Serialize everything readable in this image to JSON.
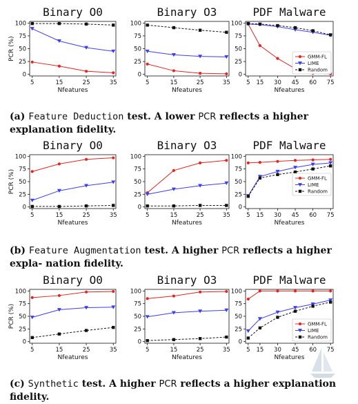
{
  "chart_data": [
    {
      "type": "line",
      "title": "Binary O0",
      "xlabel": "Nfeatures",
      "ylabel": "PCR (%)",
      "x": [
        5,
        15,
        25,
        35
      ],
      "ylim": [
        0,
        100
      ],
      "yticks": [
        0,
        25,
        50,
        75,
        100
      ],
      "series": [
        {
          "color": "#e8231e",
          "marker": "circle",
          "dashed": false,
          "values": [
            24,
            16,
            6,
            3
          ]
        },
        {
          "color": "#3b3ff0",
          "marker": "triangle",
          "dashed": false,
          "values": [
            89,
            65,
            52,
            45
          ]
        },
        {
          "color": "#111111",
          "marker": "square",
          "dashed": true,
          "values": [
            99,
            99,
            98,
            96
          ]
        }
      ]
    },
    {
      "type": "line",
      "title": "Binary O3",
      "xlabel": "Nfeatures",
      "ylabel": "",
      "x": [
        5,
        15,
        25,
        35
      ],
      "ylim": [
        0,
        100
      ],
      "yticks": [
        0,
        25,
        50,
        75,
        100
      ],
      "series": [
        {
          "color": "#e8231e",
          "marker": "circle",
          "dashed": false,
          "values": [
            20,
            7,
            2,
            1
          ]
        },
        {
          "color": "#3b3ff0",
          "marker": "triangle",
          "dashed": false,
          "values": [
            45,
            38,
            35,
            34
          ]
        },
        {
          "color": "#111111",
          "marker": "square",
          "dashed": true,
          "values": [
            96,
            91,
            86,
            82
          ]
        }
      ]
    },
    {
      "type": "line",
      "title": "PDF Malware",
      "xlabel": "Nfeatures",
      "ylabel": "",
      "x": [
        5,
        15,
        30,
        45,
        60,
        75
      ],
      "ylim": [
        0,
        100
      ],
      "yticks": [
        0,
        25,
        50,
        75,
        100
      ],
      "legend": [
        "GMM-FL",
        "LIME",
        "Random"
      ],
      "legend_position": "lower-right",
      "series": [
        {
          "name": "GMM-FL",
          "color": "#e8231e",
          "marker": "circle",
          "dashed": false,
          "values": [
            98,
            56,
            31,
            11,
            2,
            1
          ]
        },
        {
          "name": "LIME",
          "color": "#3b3ff0",
          "marker": "triangle",
          "dashed": false,
          "values": [
            98,
            97,
            93,
            87,
            82,
            76
          ]
        },
        {
          "name": "Random",
          "color": "#111111",
          "marker": "square",
          "dashed": true,
          "values": [
            99,
            98,
            95,
            91,
            85,
            77
          ]
        }
      ]
    },
    {
      "type": "line",
      "title": "Binary O0",
      "xlabel": "Nfeatures",
      "ylabel": "PCR (%)",
      "x": [
        5,
        15,
        25,
        35
      ],
      "ylim": [
        0,
        100
      ],
      "yticks": [
        0,
        25,
        50,
        75,
        100
      ],
      "series": [
        {
          "color": "#e8231e",
          "marker": "circle",
          "dashed": false,
          "values": [
            70,
            85,
            94,
            97
          ]
        },
        {
          "color": "#3b3ff0",
          "marker": "triangle",
          "dashed": false,
          "values": [
            13,
            32,
            42,
            49
          ]
        },
        {
          "color": "#111111",
          "marker": "square",
          "dashed": true,
          "values": [
            1,
            1,
            2,
            3
          ]
        }
      ]
    },
    {
      "type": "line",
      "title": "Binary O3",
      "xlabel": "Nfeatures",
      "ylabel": "",
      "x": [
        5,
        15,
        25,
        35
      ],
      "ylim": [
        0,
        100
      ],
      "yticks": [
        0,
        25,
        50,
        75,
        100
      ],
      "series": [
        {
          "color": "#e8231e",
          "marker": "circle",
          "dashed": false,
          "values": [
            28,
            72,
            87,
            92
          ]
        },
        {
          "color": "#3b3ff0",
          "marker": "triangle",
          "dashed": false,
          "values": [
            25,
            35,
            42,
            47
          ]
        },
        {
          "color": "#111111",
          "marker": "square",
          "dashed": true,
          "values": [
            2,
            2,
            3,
            3
          ]
        }
      ]
    },
    {
      "type": "line",
      "title": "PDF Malware",
      "xlabel": "Nfeatures",
      "ylabel": "",
      "x": [
        5,
        15,
        30,
        45,
        60,
        75
      ],
      "ylim": [
        0,
        100
      ],
      "yticks": [
        0,
        25,
        50,
        75,
        100
      ],
      "legend": [
        "GMM-FL",
        "LIME",
        "Random"
      ],
      "legend_position": "center-right",
      "series": [
        {
          "name": "GMM-FL",
          "color": "#e8231e",
          "marker": "circle",
          "dashed": false,
          "values": [
            87,
            88,
            90,
            92,
            93,
            94
          ]
        },
        {
          "name": "LIME",
          "color": "#3b3ff0",
          "marker": "triangle",
          "dashed": false,
          "values": [
            22,
            60,
            70,
            78,
            84,
            87
          ]
        },
        {
          "name": "Random",
          "color": "#111111",
          "marker": "square",
          "dashed": true,
          "values": [
            21,
            57,
            64,
            69,
            75,
            81
          ]
        }
      ]
    },
    {
      "type": "line",
      "title": "Binary O0",
      "xlabel": "Nfeatures",
      "ylabel": "PCR (%)",
      "x": [
        5,
        15,
        25,
        35
      ],
      "ylim": [
        0,
        100
      ],
      "yticks": [
        0,
        25,
        50,
        75,
        100
      ],
      "series": [
        {
          "color": "#e8231e",
          "marker": "circle",
          "dashed": false,
          "values": [
            87,
            91,
            98,
            99
          ]
        },
        {
          "color": "#3b3ff0",
          "marker": "triangle",
          "dashed": false,
          "values": [
            48,
            63,
            67,
            68
          ]
        },
        {
          "color": "#111111",
          "marker": "square",
          "dashed": true,
          "values": [
            8,
            15,
            22,
            28
          ]
        }
      ]
    },
    {
      "type": "line",
      "title": "Binary O3",
      "xlabel": "Nfeatures",
      "ylabel": "",
      "x": [
        5,
        15,
        25,
        35
      ],
      "ylim": [
        0,
        100
      ],
      "yticks": [
        0,
        25,
        50,
        75,
        100
      ],
      "series": [
        {
          "color": "#e8231e",
          "marker": "circle",
          "dashed": false,
          "values": [
            85,
            90,
            98,
            99
          ]
        },
        {
          "color": "#3b3ff0",
          "marker": "triangle",
          "dashed": false,
          "values": [
            49,
            57,
            60,
            62
          ]
        },
        {
          "color": "#111111",
          "marker": "square",
          "dashed": true,
          "values": [
            2,
            4,
            6,
            9
          ]
        }
      ]
    },
    {
      "type": "line",
      "title": "PDF Malware",
      "xlabel": "Nfeatures",
      "ylabel": "",
      "x": [
        5,
        15,
        30,
        45,
        60,
        75
      ],
      "ylim": [
        0,
        100
      ],
      "yticks": [
        0,
        25,
        50,
        75,
        100
      ],
      "legend": [
        "GMM-FL",
        "LIME",
        "Random"
      ],
      "legend_position": "lower-right",
      "series": [
        {
          "name": "GMM-FL",
          "color": "#e8231e",
          "marker": "circle",
          "dashed": false,
          "values": [
            84,
            100,
            100,
            100,
            100,
            100
          ]
        },
        {
          "name": "LIME",
          "color": "#3b3ff0",
          "marker": "triangle",
          "dashed": false,
          "values": [
            21,
            45,
            58,
            67,
            74,
            82
          ]
        },
        {
          "name": "Random",
          "color": "#111111",
          "marker": "square",
          "dashed": true,
          "values": [
            7,
            27,
            48,
            60,
            70,
            78
          ]
        }
      ]
    }
  ],
  "captions": {
    "a": {
      "label": "(a)",
      "name": "Feature Deduction",
      "text1": "test. A lower",
      "metric": "PCR",
      "text2": "reflects a higher explanation fidelity."
    },
    "b": {
      "label": "(b)",
      "name": "Feature Augmentation",
      "text1": "test. A higher",
      "metric": "PCR",
      "text2": "reflects a higher expla- nation fidelity."
    },
    "c": {
      "label": "(c)",
      "name": "Synthetic",
      "text1": "test. A higher",
      "metric": "PCR",
      "text2": "reflects a higher explanation fidelity."
    }
  }
}
